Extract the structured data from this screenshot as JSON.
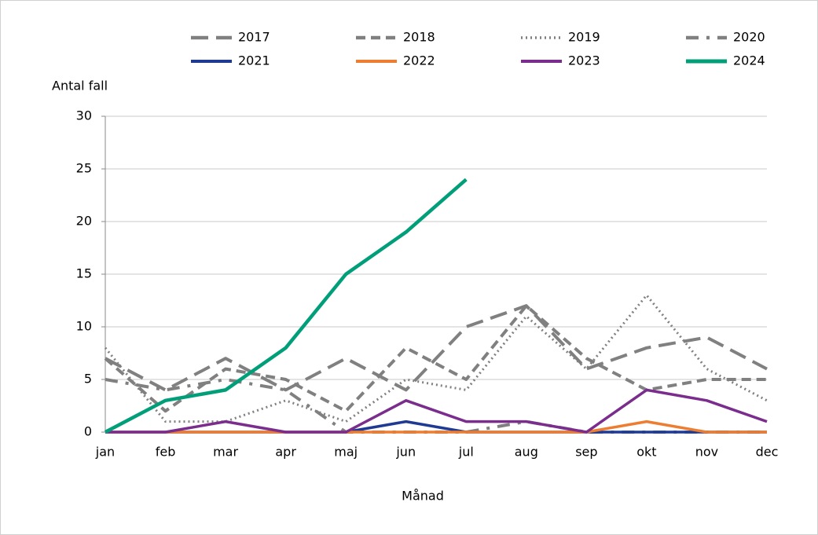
{
  "chart_data": {
    "type": "line",
    "y_label": "Antal fall",
    "x_label": "Månad",
    "categories": [
      "jan",
      "feb",
      "mar",
      "apr",
      "maj",
      "jun",
      "jul",
      "aug",
      "sep",
      "okt",
      "nov",
      "dec"
    ],
    "ylim": [
      0,
      30
    ],
    "yticks": [
      0,
      5,
      10,
      15,
      20,
      25,
      30
    ],
    "grid": true,
    "series": [
      {
        "name": "2017",
        "color": "#808080",
        "line_style": "long-dash",
        "values": [
          7,
          4,
          7,
          4,
          7,
          4,
          10,
          12,
          6,
          8,
          9,
          6
        ]
      },
      {
        "name": "2018",
        "color": "#808080",
        "line_style": "dash",
        "values": [
          7,
          2,
          6,
          5,
          2,
          8,
          5,
          12,
          7,
          4,
          5,
          5
        ]
      },
      {
        "name": "2019",
        "color": "#808080",
        "line_style": "dot",
        "values": [
          8,
          1,
          1,
          3,
          1,
          5,
          4,
          11,
          6,
          13,
          6,
          3
        ]
      },
      {
        "name": "2020",
        "color": "#808080",
        "line_style": "dash-dot",
        "values": [
          5,
          4,
          5,
          4,
          0,
          0,
          0,
          1,
          0,
          0,
          0,
          0
        ]
      },
      {
        "name": "2021",
        "color": "#1f3a93",
        "line_style": "solid",
        "values": [
          0,
          0,
          0,
          0,
          0,
          1,
          0,
          0,
          0,
          0,
          0,
          0
        ]
      },
      {
        "name": "2022",
        "color": "#ed7d31",
        "line_style": "solid",
        "values": [
          0,
          0,
          0,
          0,
          0,
          0,
          0,
          0,
          0,
          1,
          0,
          0
        ]
      },
      {
        "name": "2023",
        "color": "#7b2d8e",
        "line_style": "solid",
        "values": [
          0,
          0,
          1,
          0,
          0,
          3,
          1,
          1,
          0,
          4,
          3,
          1
        ]
      },
      {
        "name": "2024",
        "color": "#009f7a",
        "line_style": "solid-thick",
        "values": [
          0,
          3,
          4,
          8,
          15,
          19,
          24,
          null,
          null,
          null,
          null,
          null
        ]
      }
    ]
  }
}
